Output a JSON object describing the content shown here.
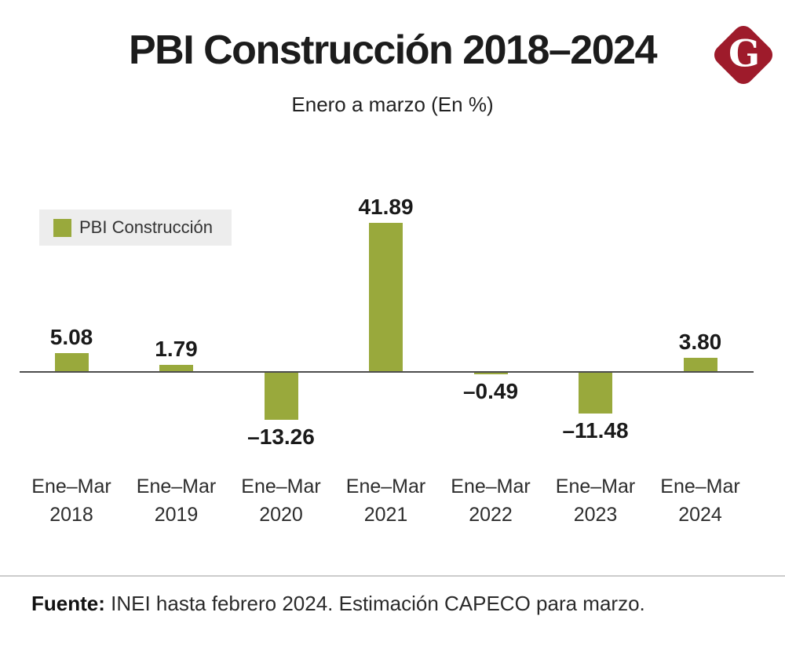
{
  "header": {
    "title": "PBI Construcción 2018–2024",
    "subtitle": "Enero a marzo (En %)",
    "logo_letter": "G",
    "logo_color": "#9e1b2b"
  },
  "legend": {
    "label": "PBI Construcción",
    "swatch_color": "#99a93c"
  },
  "chart_data": {
    "type": "bar",
    "title": "PBI Construcción 2018–2024",
    "subtitle": "Enero a marzo (En %)",
    "series_name": "PBI Construcción",
    "categories": [
      "Ene–Mar 2018",
      "Ene–Mar 2019",
      "Ene–Mar 2020",
      "Ene–Mar 2021",
      "Ene–Mar 2022",
      "Ene–Mar 2023",
      "Ene–Mar 2024"
    ],
    "x_labels": [
      {
        "period": "Ene–Mar",
        "year": "2018"
      },
      {
        "period": "Ene–Mar",
        "year": "2019"
      },
      {
        "period": "Ene–Mar",
        "year": "2020"
      },
      {
        "period": "Ene–Mar",
        "year": "2021"
      },
      {
        "period": "Ene–Mar",
        "year": "2022"
      },
      {
        "period": "Ene–Mar",
        "year": "2023"
      },
      {
        "period": "Ene–Mar",
        "year": "2024"
      }
    ],
    "values": [
      5.08,
      1.79,
      -13.26,
      41.89,
      -0.49,
      -11.48,
      3.8
    ],
    "value_labels": [
      "5.08",
      "1.79",
      "–13.26",
      "41.89",
      "–0.49",
      "–11.48",
      "3.80"
    ],
    "bar_color": "#99a93c",
    "axis_color": "#4d4d4d",
    "baseline": 0,
    "ylim": [
      -15,
      45
    ],
    "grid": false,
    "legend_position": "upper-left",
    "xlabel": "",
    "ylabel": ""
  },
  "footer": {
    "source_label": "Fuente:",
    "source_text": " INEI hasta febrero 2024. Estimación CAPECO para marzo."
  }
}
